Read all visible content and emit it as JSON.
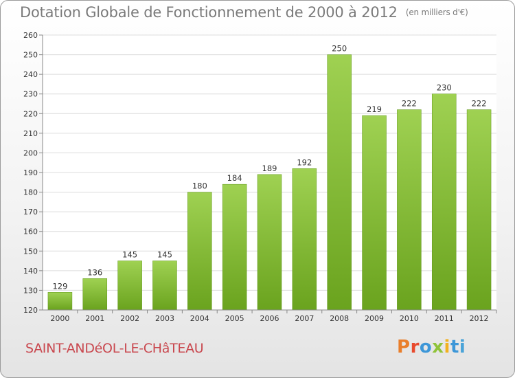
{
  "header": {
    "title": "Dotation Globale de Fonctionnement de 2000 à 2012",
    "unit": "(en milliers d'€)"
  },
  "footer": {
    "commune": "SAINT-ANDéOL-LE-CHâTEAU",
    "logo": [
      "P",
      "r",
      "o",
      "x",
      "i",
      "t",
      "i"
    ]
  },
  "colors": {
    "bar_top": "#9fd152",
    "bar_bottom": "#6aa31e",
    "commune": "#c9484f",
    "title": "#7a7a7a"
  },
  "chart_data": {
    "type": "bar",
    "title": "Dotation Globale de Fonctionnement de 2000 à 2012",
    "subtitle": "(en milliers d'€)",
    "xlabel": "",
    "ylabel": "",
    "categories": [
      "2000",
      "2001",
      "2002",
      "2003",
      "2004",
      "2005",
      "2006",
      "2007",
      "2008",
      "2009",
      "2010",
      "2011",
      "2012"
    ],
    "values": [
      129,
      136,
      145,
      145,
      180,
      184,
      189,
      192,
      250,
      219,
      222,
      230,
      222
    ],
    "ylim": [
      120,
      260
    ],
    "yticks": [
      120,
      130,
      140,
      150,
      160,
      170,
      180,
      190,
      200,
      210,
      220,
      230,
      240,
      250,
      260
    ],
    "grid": true,
    "legend": "none"
  }
}
